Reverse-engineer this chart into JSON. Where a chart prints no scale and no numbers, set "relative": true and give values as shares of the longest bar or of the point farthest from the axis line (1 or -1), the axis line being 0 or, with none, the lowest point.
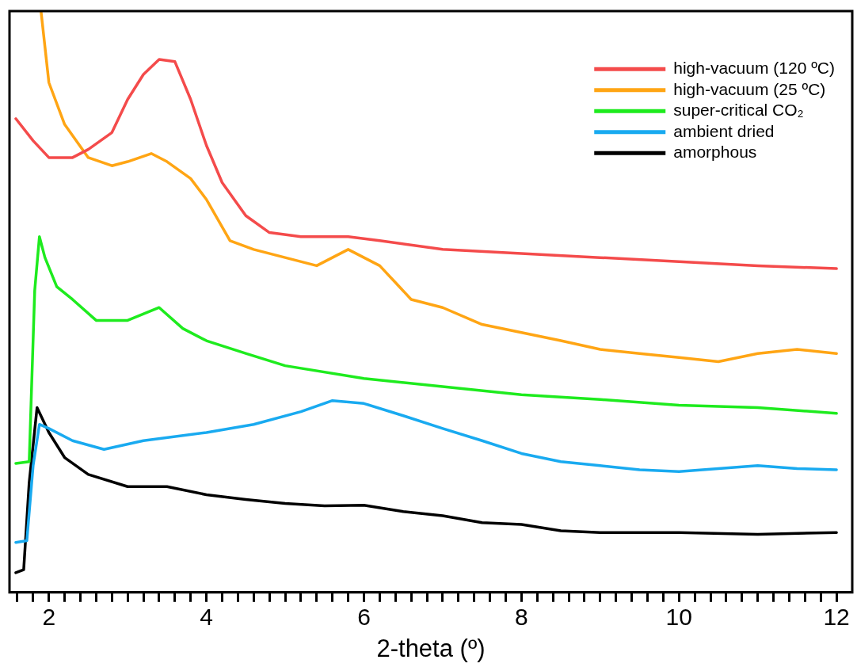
{
  "chart_data": {
    "type": "line",
    "xlabel": "2-theta (º)",
    "relative": true,
    "xlim": [
      1.5,
      12.2
    ],
    "xticks": [
      {
        "value": 1.6,
        "label": null
      },
      {
        "value": 1.8,
        "label": null
      },
      2,
      {
        "value": 2.2,
        "label": null
      },
      {
        "value": 2.4,
        "label": null
      },
      {
        "value": 2.6,
        "label": null
      },
      {
        "value": 2.8,
        "label": null
      },
      {
        "value": 3,
        "label": null
      },
      {
        "value": 3.2,
        "label": null
      },
      {
        "value": 3.4,
        "label": null
      },
      {
        "value": 3.6,
        "label": null
      },
      {
        "value": 3.8,
        "label": null
      },
      4,
      {
        "value": 4.2,
        "label": null
      },
      {
        "value": 4.4,
        "label": null
      },
      {
        "value": 4.6,
        "label": null
      },
      {
        "value": 4.8,
        "label": null
      },
      {
        "value": 5,
        "label": null
      },
      {
        "value": 5.2,
        "label": null
      },
      {
        "value": 5.4,
        "label": null
      },
      {
        "value": 5.6,
        "label": null
      },
      {
        "value": 5.8,
        "label": null
      },
      6,
      {
        "value": 6.2,
        "label": null
      },
      {
        "value": 6.4,
        "label": null
      },
      {
        "value": 6.6,
        "label": null
      },
      {
        "value": 6.8,
        "label": null
      },
      {
        "value": 7,
        "label": null
      },
      {
        "value": 7.2,
        "label": null
      },
      {
        "value": 7.4,
        "label": null
      },
      {
        "value": 7.6,
        "label": null
      },
      {
        "value": 7.8,
        "label": null
      },
      8,
      {
        "value": 8.2,
        "label": null
      },
      {
        "value": 8.4,
        "label": null
      },
      {
        "value": 8.6,
        "label": null
      },
      {
        "value": 8.8,
        "label": null
      },
      {
        "value": 9,
        "label": null
      },
      {
        "value": 9.2,
        "label": null
      },
      {
        "value": 9.4,
        "label": null
      },
      {
        "value": 9.6,
        "label": null
      },
      {
        "value": 9.8,
        "label": null
      },
      10,
      {
        "value": 10.2,
        "label": null
      },
      {
        "value": 10.4,
        "label": null
      },
      {
        "value": 10.6,
        "label": null
      },
      {
        "value": 10.8,
        "label": null
      },
      {
        "value": 11,
        "label": null
      },
      {
        "value": 11.2,
        "label": null
      },
      {
        "value": 11.4,
        "label": null
      },
      {
        "value": 11.6,
        "label": null
      },
      {
        "value": 11.8,
        "label": null
      },
      12
    ],
    "grid": false,
    "legend": "top right",
    "marker": "none",
    "line_style": "solid",
    "series": [
      {
        "name": "high-vacuum (120 ºC)",
        "color": "#f44b4b",
        "x": [
          1.58,
          1.8,
          2.0,
          2.3,
          2.5,
          2.8,
          3.0,
          3.2,
          3.4,
          3.6,
          3.8,
          4.0,
          4.2,
          4.5,
          4.8,
          5.2,
          5.8,
          6.2,
          7,
          8,
          9,
          10,
          11,
          12
        ],
        "values": [
          0.815,
          0.777,
          0.748,
          0.748,
          0.762,
          0.791,
          0.848,
          0.891,
          0.917,
          0.913,
          0.848,
          0.769,
          0.705,
          0.648,
          0.619,
          0.612,
          0.612,
          0.605,
          0.59,
          0.583,
          0.576,
          0.569,
          0.562,
          0.557
        ]
      },
      {
        "name": "high-vacuum (25 ºC)",
        "color": "#ffa514",
        "x": [
          1.9,
          2.0,
          2.2,
          2.5,
          2.8,
          3.0,
          3.3,
          3.5,
          3.8,
          4.0,
          4.3,
          4.6,
          5.0,
          5.4,
          5.8,
          6.2,
          6.6,
          7.0,
          7.5,
          8.0,
          8.5,
          9.0,
          9.5,
          10,
          10.5,
          11,
          11.5,
          12
        ],
        "values": [
          1,
          0.877,
          0.805,
          0.748,
          0.734,
          0.741,
          0.755,
          0.741,
          0.712,
          0.676,
          0.605,
          0.59,
          0.576,
          0.562,
          0.59,
          0.562,
          0.504,
          0.49,
          0.461,
          0.447,
          0.433,
          0.418,
          0.411,
          0.404,
          0.397,
          0.411,
          0.418,
          0.411
        ]
      },
      {
        "name": "super-critical CO₂",
        "color": "#1eeb1e",
        "x": [
          1.58,
          1.75,
          1.82,
          1.88,
          1.95,
          2.1,
          2.3,
          2.6,
          3.0,
          3.4,
          3.7,
          4.0,
          4.5,
          5,
          6,
          7,
          8,
          9,
          10,
          11,
          12
        ],
        "values": [
          0.222,
          0.225,
          0.519,
          0.612,
          0.576,
          0.526,
          0.504,
          0.468,
          0.468,
          0.49,
          0.454,
          0.433,
          0.411,
          0.39,
          0.368,
          0.354,
          0.34,
          0.332,
          0.322,
          0.318,
          0.308
        ]
      },
      {
        "name": "ambient dried",
        "color": "#19aaf0",
        "x": [
          1.58,
          1.72,
          1.8,
          1.88,
          2.0,
          2.3,
          2.7,
          3.2,
          4,
          4.6,
          5.2,
          5.6,
          6.0,
          6.5,
          7,
          7.5,
          8,
          8.5,
          9,
          9.5,
          10,
          10.5,
          11,
          11.5,
          12
        ],
        "values": [
          0.086,
          0.089,
          0.218,
          0.289,
          0.282,
          0.261,
          0.246,
          0.261,
          0.275,
          0.289,
          0.311,
          0.33,
          0.325,
          0.304,
          0.282,
          0.261,
          0.239,
          0.225,
          0.218,
          0.211,
          0.208,
          0.213,
          0.218,
          0.213,
          0.211
        ]
      },
      {
        "name": "amorphous",
        "color": "#000000",
        "x": [
          1.58,
          1.68,
          1.75,
          1.85,
          2.0,
          2.2,
          2.5,
          3.0,
          3.5,
          4,
          4.5,
          5,
          5.5,
          6,
          6.5,
          7,
          7.5,
          8,
          8.5,
          9,
          10,
          11,
          12
        ],
        "values": [
          0.034,
          0.039,
          0.189,
          0.318,
          0.275,
          0.232,
          0.203,
          0.182,
          0.182,
          0.168,
          0.16,
          0.153,
          0.149,
          0.15,
          0.139,
          0.132,
          0.12,
          0.117,
          0.106,
          0.103,
          0.103,
          0.1,
          0.103
        ]
      }
    ]
  }
}
